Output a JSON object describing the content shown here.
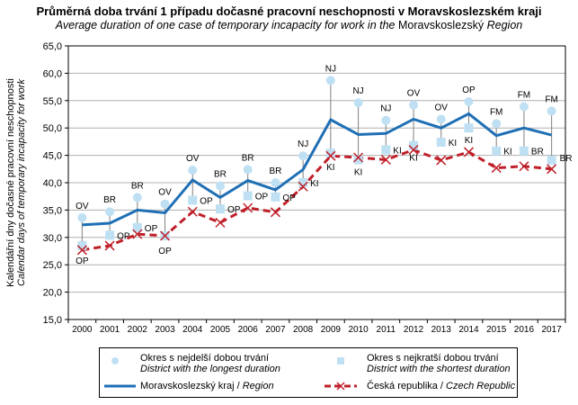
{
  "chart_data": {
    "type": "line",
    "title": "Průměrná doba trvání 1 případu dočasné pracovní neschopnosti  v Moravskoslezském  kraji",
    "subtitle_italic_1": "Average duration of one case of temporary incapacity for work in the ",
    "subtitle_upright": "Moravskoslezský",
    "subtitle_italic_2": " Region",
    "ylabel_cz": "Kalendářní dny dočasné pracovní neschopnosti",
    "ylabel_en": "Calendar days of temporary incapacity for work",
    "ylim": [
      15,
      65
    ],
    "yticks": [
      "15,0",
      "20,0",
      "25,0",
      "30,0",
      "35,0",
      "40,0",
      "45,0",
      "50,0",
      "55,0",
      "60,0",
      "65,0"
    ],
    "categories": [
      "2000",
      "2001",
      "2002",
      "2003",
      "2004",
      "2005",
      "2006",
      "2007",
      "2008",
      "2009",
      "2010",
      "2011",
      "2012",
      "2013",
      "2014",
      "2015",
      "2016",
      "2017"
    ],
    "series": [
      {
        "name": "Moravskoslezský kraj / Region",
        "color": "#1f6fb5",
        "values": [
          32.3,
          32.6,
          35.0,
          34.5,
          40.5,
          37.3,
          40.4,
          38.7,
          42.4,
          51.5,
          48.8,
          49.0,
          51.6,
          50.0,
          52.6,
          48.6,
          50.0,
          48.7
        ]
      },
      {
        "name": "Česká republika / Czech Republic",
        "color": "#c0202a",
        "values": [
          27.7,
          28.5,
          30.6,
          30.3,
          34.7,
          32.7,
          35.4,
          34.6,
          39.3,
          44.9,
          44.6,
          44.2,
          46.0,
          44.1,
          45.6,
          42.7,
          43.0,
          42.5
        ]
      },
      {
        "name": "Okres s nejdelší dobou trvání",
        "color": "#bfe0f3",
        "values": [
          33.6,
          34.7,
          37.3,
          36.1,
          42.3,
          39.4,
          42.4,
          40.0,
          44.9,
          58.7,
          54.6,
          51.4,
          54.2,
          51.6,
          54.8,
          50.8,
          53.9,
          53.1
        ],
        "labels": [
          "OV",
          "BR",
          "BR",
          "OV",
          "OV",
          "BR",
          "BR",
          "BR",
          "NJ",
          "NJ",
          "NJ",
          "NJ",
          "OV",
          "OV",
          "OP",
          "FM",
          "FM",
          "FM"
        ]
      },
      {
        "name": "Okres s nejkratší dobou trvání",
        "color": "#bfe0f3",
        "values": [
          28.5,
          30.4,
          31.8,
          30.3,
          36.8,
          35.2,
          37.6,
          37.4,
          40.0,
          45.4,
          44.2,
          46.0,
          46.8,
          47.4,
          50.0,
          45.8,
          45.8,
          44.1
        ],
        "labels": [
          "OP",
          "OP",
          "OP",
          "OP",
          "OP",
          "OP",
          "OP",
          "OP",
          "KI",
          "KI",
          "KI",
          "KI",
          "KI",
          "KI",
          "KI",
          "KI",
          "BR",
          "BR"
        ]
      }
    ],
    "grid": true,
    "legend_position": "bottom"
  },
  "legend": {
    "max_cz": "Okres s nejdelší dobou trvání",
    "max_en": "District with the longest duration",
    "min_cz": "Okres s nejkratší dobou trvání",
    "min_en": "District with the shortest duration",
    "region_cz": "Moravskoslezský kraj / ",
    "region_en": "Region",
    "cr_cz": "Česká republika / ",
    "cr_en": "Czech Republic"
  }
}
